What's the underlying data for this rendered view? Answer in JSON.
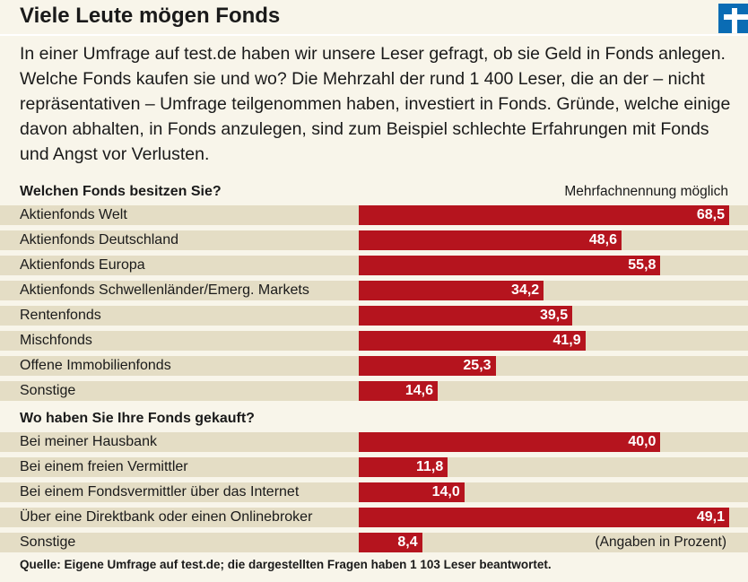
{
  "title": "Viele Leute mögen Fonds",
  "logo_icon": "test-logo-icon",
  "intro": "In einer Umfrage auf test.de haben wir unsere Leser gefragt, ob sie Geld in Fonds anlegen. Welche Fonds kaufen sie und wo? Die Mehrzahl der rund 1 400 Leser, die an der – nicht repräsentativen – Umfrage teilgenommen haben, investiert in Fonds. Gründe, welche einige davon abhalten, in Fonds anzulegen, sind zum Beispiel schlechte Erfahrungen mit Fonds und Angst vor Verlusten.",
  "note": "Mehrfachnennung möglich",
  "unit": "(Angaben in Prozent)",
  "footer": "Quelle: Eigene Umfrage auf test.de; die dargestellten Fragen haben 1 103 Leser beantwortet.",
  "colors": {
    "bar": "#b5141e",
    "band": "#e4ddc5",
    "background": "#f8f5ea",
    "logo": "#0a6cb4"
  },
  "chart_data": [
    {
      "type": "bar",
      "orientation": "horizontal",
      "title": "Welchen Fonds besitzen Sie?",
      "categories": [
        "Aktienfonds Welt",
        "Aktienfonds Deutschland",
        "Aktienfonds Europa",
        "Aktienfonds Schwellenländer/Emerg. Markets",
        "Rentenfonds",
        "Mischfonds",
        "Offene Immobilienfonds",
        "Sonstige"
      ],
      "values": [
        68.5,
        48.6,
        55.8,
        34.2,
        39.5,
        41.9,
        25.3,
        14.6
      ],
      "labels": [
        "68,5",
        "48,6",
        "55,8",
        "34,2",
        "39,5",
        "41,9",
        "25,3",
        "14,6"
      ]
    },
    {
      "type": "bar",
      "orientation": "horizontal",
      "title": "Wo haben Sie Ihre Fonds gekauft?",
      "categories": [
        "Bei meiner Hausbank",
        "Bei einem freien Vermittler",
        "Bei einem Fondsvermittler über das Internet",
        "Über eine Direktbank oder einen Onlinebroker",
        "Sonstige"
      ],
      "values": [
        40.0,
        11.8,
        14.0,
        49.1,
        8.4
      ],
      "labels": [
        "40,0",
        "11,8",
        "14,0",
        "49,1",
        "8,4"
      ]
    }
  ]
}
